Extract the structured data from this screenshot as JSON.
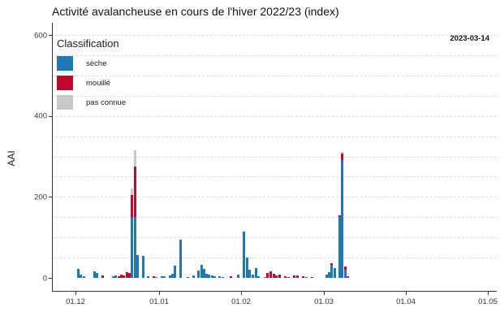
{
  "title": "Activité avalancheuse en cours de l'hiver 2022/23 (index)",
  "annotation_date": "2023-03-14",
  "y_axis": {
    "label": "AAI",
    "ticks": [
      0,
      200,
      400,
      600
    ]
  },
  "x_axis": {
    "ticks": [
      "01.12",
      "01.01",
      "01.02",
      "01.03",
      "01.04",
      "01.05"
    ]
  },
  "legend": {
    "title": "Classification",
    "items": [
      {
        "label": "sèche",
        "key": "dry",
        "color": "#1f77b4"
      },
      {
        "label": "mouillé",
        "key": "wet",
        "color": "#bf0a30"
      },
      {
        "label": "pas connue",
        "key": "unknown",
        "color": "#c9c9c9"
      }
    ]
  },
  "colors": {
    "dry": "#1f77b4",
    "wet": "#bf0a30",
    "unknown": "#c9c9c9",
    "gridline": "#dcdcdc",
    "axis": "#333333"
  },
  "chart_data": {
    "type": "bar",
    "stacked": true,
    "title": "Activité avalancheuse en cours de l'hiver 2022/23 (index)",
    "xlabel": "",
    "ylabel": "AAI",
    "ylim": [
      0,
      620
    ],
    "grid": "dashed horizontal every 50",
    "legend_position": "top-left inside panel",
    "stack_order": [
      "dry",
      "wet",
      "unknown"
    ],
    "points": [
      {
        "date": "2022-12-02",
        "dry": 22
      },
      {
        "date": "2022-12-03",
        "dry": 9
      },
      {
        "date": "2022-12-04",
        "dry": 4
      },
      {
        "date": "2022-12-08",
        "dry": 17
      },
      {
        "date": "2022-12-09",
        "dry": 13
      },
      {
        "date": "2022-12-11",
        "wet": 6
      },
      {
        "date": "2022-12-15",
        "dry": 4
      },
      {
        "date": "2022-12-16",
        "dry": 7
      },
      {
        "date": "2022-12-17",
        "wet": 4
      },
      {
        "date": "2022-12-18",
        "wet": 8
      },
      {
        "date": "2022-12-19",
        "wet": 6
      },
      {
        "date": "2022-12-20",
        "wet": 14
      },
      {
        "date": "2022-12-21",
        "wet": 12
      },
      {
        "date": "2022-12-22",
        "dry": 150,
        "wet": 55,
        "unknown": 15
      },
      {
        "date": "2022-12-23",
        "dry": 150,
        "wet": 125,
        "unknown": 40
      },
      {
        "date": "2022-12-24",
        "dry": 57
      },
      {
        "date": "2022-12-26",
        "dry": 55
      },
      {
        "date": "2022-12-28",
        "dry": 4
      },
      {
        "date": "2022-12-30",
        "wet": 5
      },
      {
        "date": "2022-12-31",
        "dry": 3
      },
      {
        "date": "2023-01-02",
        "dry": 4
      },
      {
        "date": "2023-01-03",
        "dry": 4
      },
      {
        "date": "2023-01-05",
        "dry": 6
      },
      {
        "date": "2023-01-06",
        "dry": 10
      },
      {
        "date": "2023-01-07",
        "dry": 30
      },
      {
        "date": "2023-01-09",
        "dry": 95
      },
      {
        "date": "2023-01-12",
        "dry": 3
      },
      {
        "date": "2023-01-14",
        "dry": 6
      },
      {
        "date": "2023-01-16",
        "dry": 18
      },
      {
        "date": "2023-01-17",
        "dry": 32
      },
      {
        "date": "2023-01-18",
        "dry": 22
      },
      {
        "date": "2023-01-19",
        "dry": 11
      },
      {
        "date": "2023-01-20",
        "dry": 8
      },
      {
        "date": "2023-01-21",
        "dry": 6
      },
      {
        "date": "2023-01-22",
        "dry": 5
      },
      {
        "date": "2023-01-24",
        "dry": 4
      },
      {
        "date": "2023-01-25",
        "dry": 3
      },
      {
        "date": "2023-01-28",
        "wet": 4
      },
      {
        "date": "2023-01-31",
        "dry": 8
      },
      {
        "date": "2023-02-02",
        "dry": 115
      },
      {
        "date": "2023-02-03",
        "dry": 50
      },
      {
        "date": "2023-02-04",
        "dry": 20
      },
      {
        "date": "2023-02-05",
        "dry": 8
      },
      {
        "date": "2023-02-06",
        "dry": 25
      },
      {
        "date": "2023-02-07",
        "dry": 5
      },
      {
        "date": "2023-02-09",
        "dry": 3
      },
      {
        "date": "2023-02-10",
        "wet": 12
      },
      {
        "date": "2023-02-11",
        "wet": 16
      },
      {
        "date": "2023-02-12",
        "wet": 10
      },
      {
        "date": "2023-02-13",
        "wet": 6
      },
      {
        "date": "2023-02-14",
        "wet": 8
      },
      {
        "date": "2023-02-16",
        "wet": 5
      },
      {
        "date": "2023-02-17",
        "wet": 3
      },
      {
        "date": "2023-02-19",
        "wet": 6
      },
      {
        "date": "2023-02-20",
        "wet": 7
      },
      {
        "date": "2023-02-22",
        "wet": 5
      },
      {
        "date": "2023-02-23",
        "dry": 3
      },
      {
        "date": "2023-02-25",
        "wet": 2
      },
      {
        "date": "2023-03-02",
        "dry": 8
      },
      {
        "date": "2023-03-03",
        "dry": 15
      },
      {
        "date": "2023-03-04",
        "dry": 32,
        "wet": 5
      },
      {
        "date": "2023-03-05",
        "dry": 25
      },
      {
        "date": "2023-03-07",
        "dry": 150,
        "wet": 5
      },
      {
        "date": "2023-03-08",
        "dry": 292,
        "wet": 16,
        "unknown": 4
      },
      {
        "date": "2023-03-09",
        "dry": 20,
        "wet": 8
      },
      {
        "date": "2023-03-10",
        "dry": 3,
        "wet": 2
      }
    ]
  }
}
